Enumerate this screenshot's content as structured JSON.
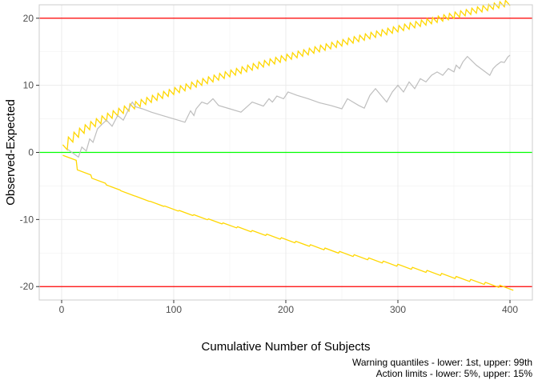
{
  "chart_data": {
    "type": "line",
    "title": "",
    "xlabel": "Cumulative Number of Subjects",
    "ylabel": "Observed-Expected",
    "xlim": [
      -20,
      420
    ],
    "ylim": [
      -22,
      22
    ],
    "x_ticks": [
      0,
      100,
      200,
      300,
      400
    ],
    "y_ticks": [
      -20,
      -10,
      0,
      10,
      20
    ],
    "x_tick_labels": [
      "0",
      "100",
      "200",
      "300",
      "400"
    ],
    "y_tick_labels": [
      "-20",
      "-10",
      "0",
      "10",
      "20"
    ],
    "grid": true,
    "caption": [
      "Warning quantiles - lower: 1st, upper: 99th",
      "Action limits - lower: 5%, upper: 15%"
    ],
    "reference_lines": [
      {
        "y": 20,
        "color": "#ff0000"
      },
      {
        "y": -20,
        "color": "#ff0000"
      },
      {
        "y": 0,
        "color": "#00ff00"
      }
    ],
    "series": [
      {
        "color": "#bebebe",
        "x": [
          5,
          15,
          18,
          22,
          25,
          28,
          32,
          36,
          40,
          45,
          50,
          55,
          60,
          63,
          66,
          72,
          80,
          90,
          100,
          110,
          115,
          118,
          120,
          125,
          130,
          135,
          140,
          150,
          160,
          170,
          180,
          185,
          188,
          192,
          198,
          202,
          210,
          220,
          230,
          240,
          250,
          255,
          260,
          265,
          270,
          275,
          280,
          285,
          290,
          295,
          300,
          305,
          310,
          315,
          320,
          325,
          330,
          335,
          340,
          345,
          350,
          352,
          355,
          358,
          362,
          370,
          378,
          382,
          385,
          388,
          392,
          395,
          398,
          400
        ],
        "y": [
          0.5,
          -0.7,
          0.8,
          0.2,
          2.0,
          1.5,
          3.5,
          4.2,
          4.8,
          3.9,
          5.5,
          4.8,
          6.5,
          7.5,
          6.8,
          6.5,
          6.0,
          5.5,
          5.0,
          4.5,
          6.2,
          5.5,
          6.5,
          7.5,
          7.2,
          8.0,
          7.0,
          6.5,
          6.0,
          7.5,
          6.9,
          8.0,
          7.5,
          8.4,
          8.0,
          9.0,
          8.5,
          8.0,
          7.4,
          7.0,
          6.5,
          8.0,
          7.5,
          7.0,
          6.6,
          8.5,
          9.5,
          8.5,
          7.5,
          9.0,
          10.0,
          9.0,
          10.5,
          9.5,
          11.0,
          10.5,
          11.5,
          12.0,
          11.5,
          12.5,
          12.0,
          13.0,
          12.5,
          13.5,
          14.3,
          13.0,
          12.0,
          11.5,
          12.5,
          13.0,
          13.5,
          13.4,
          14.2,
          14.5
        ]
      }
    ]
  }
}
